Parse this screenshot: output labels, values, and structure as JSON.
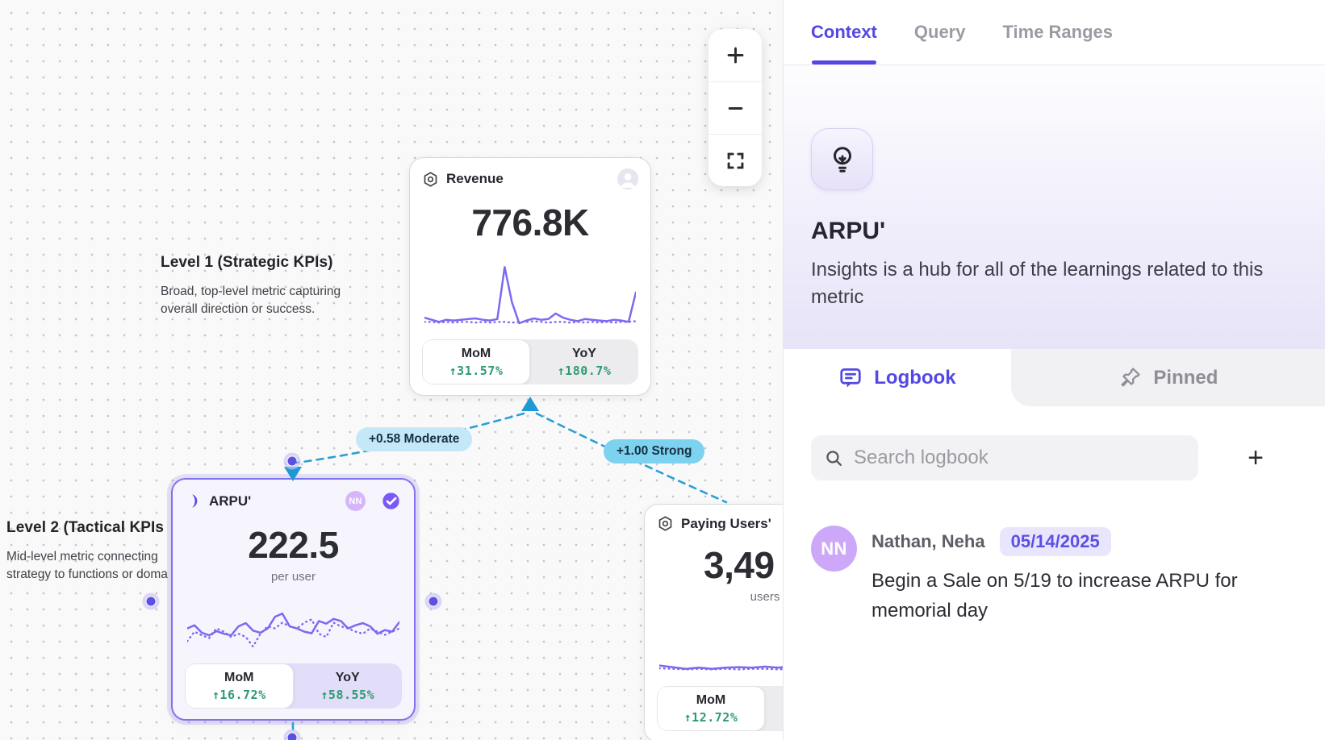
{
  "canvas": {
    "zoom_toolbar": {
      "zoom_in": "+",
      "zoom_out": "−",
      "fit": "fit-view"
    },
    "levels": [
      {
        "title": "Level 1 (Strategic KPIs)",
        "description": "Broad, top-level metric capturing overall direction or success."
      },
      {
        "title": "Level 2 (Tactical KPIs",
        "description": "Mid-level metric connecting strategy to functions or doma"
      }
    ],
    "connections": [
      {
        "label": "+0.58 Moderate",
        "strength": "Moderate",
        "value": "+0.58"
      },
      {
        "label": "+1.00 Strong",
        "strength": "Strong",
        "value": "+1.00"
      }
    ],
    "cards": [
      {
        "id": "revenue",
        "icon": "hexagon-icon",
        "title": "Revenue",
        "value": "776.8K",
        "unit": "",
        "stats": [
          {
            "label": "MoM",
            "value": "↑31.57%"
          },
          {
            "label": "YoY",
            "value": "↑180.7%"
          }
        ],
        "sparkline": {
          "solid": [
            16,
            13,
            10,
            13,
            12,
            13,
            14,
            15,
            13,
            12,
            14,
            88,
            38,
            8,
            12,
            15,
            13,
            14,
            22,
            16,
            13,
            11,
            14,
            13,
            12,
            11,
            13,
            12,
            10,
            52
          ],
          "dotted": [
            10,
            10,
            9,
            10,
            9,
            10,
            10,
            9,
            10,
            9,
            10,
            10,
            9,
            10,
            10,
            11,
            10,
            9,
            10,
            10,
            9,
            10,
            9,
            10,
            9,
            10,
            9,
            10,
            10,
            11
          ]
        }
      },
      {
        "id": "arpu",
        "icon": "crescent-icon",
        "title": "ARPU'",
        "value": "222.5",
        "unit": "per user",
        "badges": {
          "avatar_initials": "NN",
          "verified": true
        },
        "stats": [
          {
            "label": "MoM",
            "value": "↑16.72%"
          },
          {
            "label": "YoY",
            "value": "↑58.55%"
          }
        ],
        "sparkline": {
          "solid": [
            46,
            52,
            38,
            33,
            41,
            36,
            33,
            50,
            56,
            42,
            38,
            46,
            68,
            74,
            50,
            46,
            40,
            37,
            60,
            55,
            64,
            60,
            46,
            52,
            56,
            50,
            36,
            43,
            40,
            58
          ],
          "dotted": [
            22,
            40,
            33,
            28,
            46,
            40,
            30,
            36,
            30,
            12,
            36,
            50,
            46,
            57,
            50,
            46,
            57,
            63,
            36,
            30,
            57,
            50,
            46,
            40,
            36,
            46,
            40,
            34,
            40,
            46
          ]
        }
      },
      {
        "id": "paying-users",
        "icon": "hexagon-icon",
        "title": "Paying Users'",
        "value": "3,49",
        "unit": "users",
        "stats": [
          {
            "label": "MoM",
            "value": "↑12.72%"
          }
        ],
        "sparkline": {
          "solid": [
            18,
            15,
            12,
            14,
            12,
            14,
            15,
            14,
            16,
            14,
            17,
            22,
            18,
            80,
            30,
            13,
            16
          ],
          "dotted": [
            13,
            12,
            11,
            12,
            11,
            12,
            11,
            12,
            12,
            11,
            12,
            13,
            12,
            12,
            12,
            12,
            12
          ]
        }
      }
    ]
  },
  "panel": {
    "tabs": [
      {
        "label": "Context",
        "active": true
      },
      {
        "label": "Query",
        "active": false
      },
      {
        "label": "Time Ranges",
        "active": false
      }
    ],
    "header": {
      "icon": "lightbulb-icon",
      "title": "ARPU'",
      "description": "Insights is a hub for all of the learnings related to this metric"
    },
    "sections": [
      {
        "label": "Logbook",
        "icon": "logbook-icon",
        "active": true
      },
      {
        "label": "Pinned",
        "icon": "pin-icon",
        "active": false
      }
    ],
    "search": {
      "placeholder": "Search logbook",
      "add_button": "+"
    },
    "logbook_entries": [
      {
        "avatar_initials": "NN",
        "author": "Nathan, Neha",
        "date": "05/14/2025",
        "text": "Begin a Sale on 5/19 to increase ARPU for memorial day"
      }
    ]
  },
  "colors": {
    "accent_purple": "#5348e4",
    "sparkline_purple": "#7b6af0",
    "selected_card_border": "#8172ee",
    "positive_green": "#2e9b72",
    "connection_blue": "#2a9fd6",
    "label_moderate_bg": "#c4e8f8",
    "label_strong_bg": "#7cd2ef",
    "panel_lavender": "#e7e3f8"
  }
}
